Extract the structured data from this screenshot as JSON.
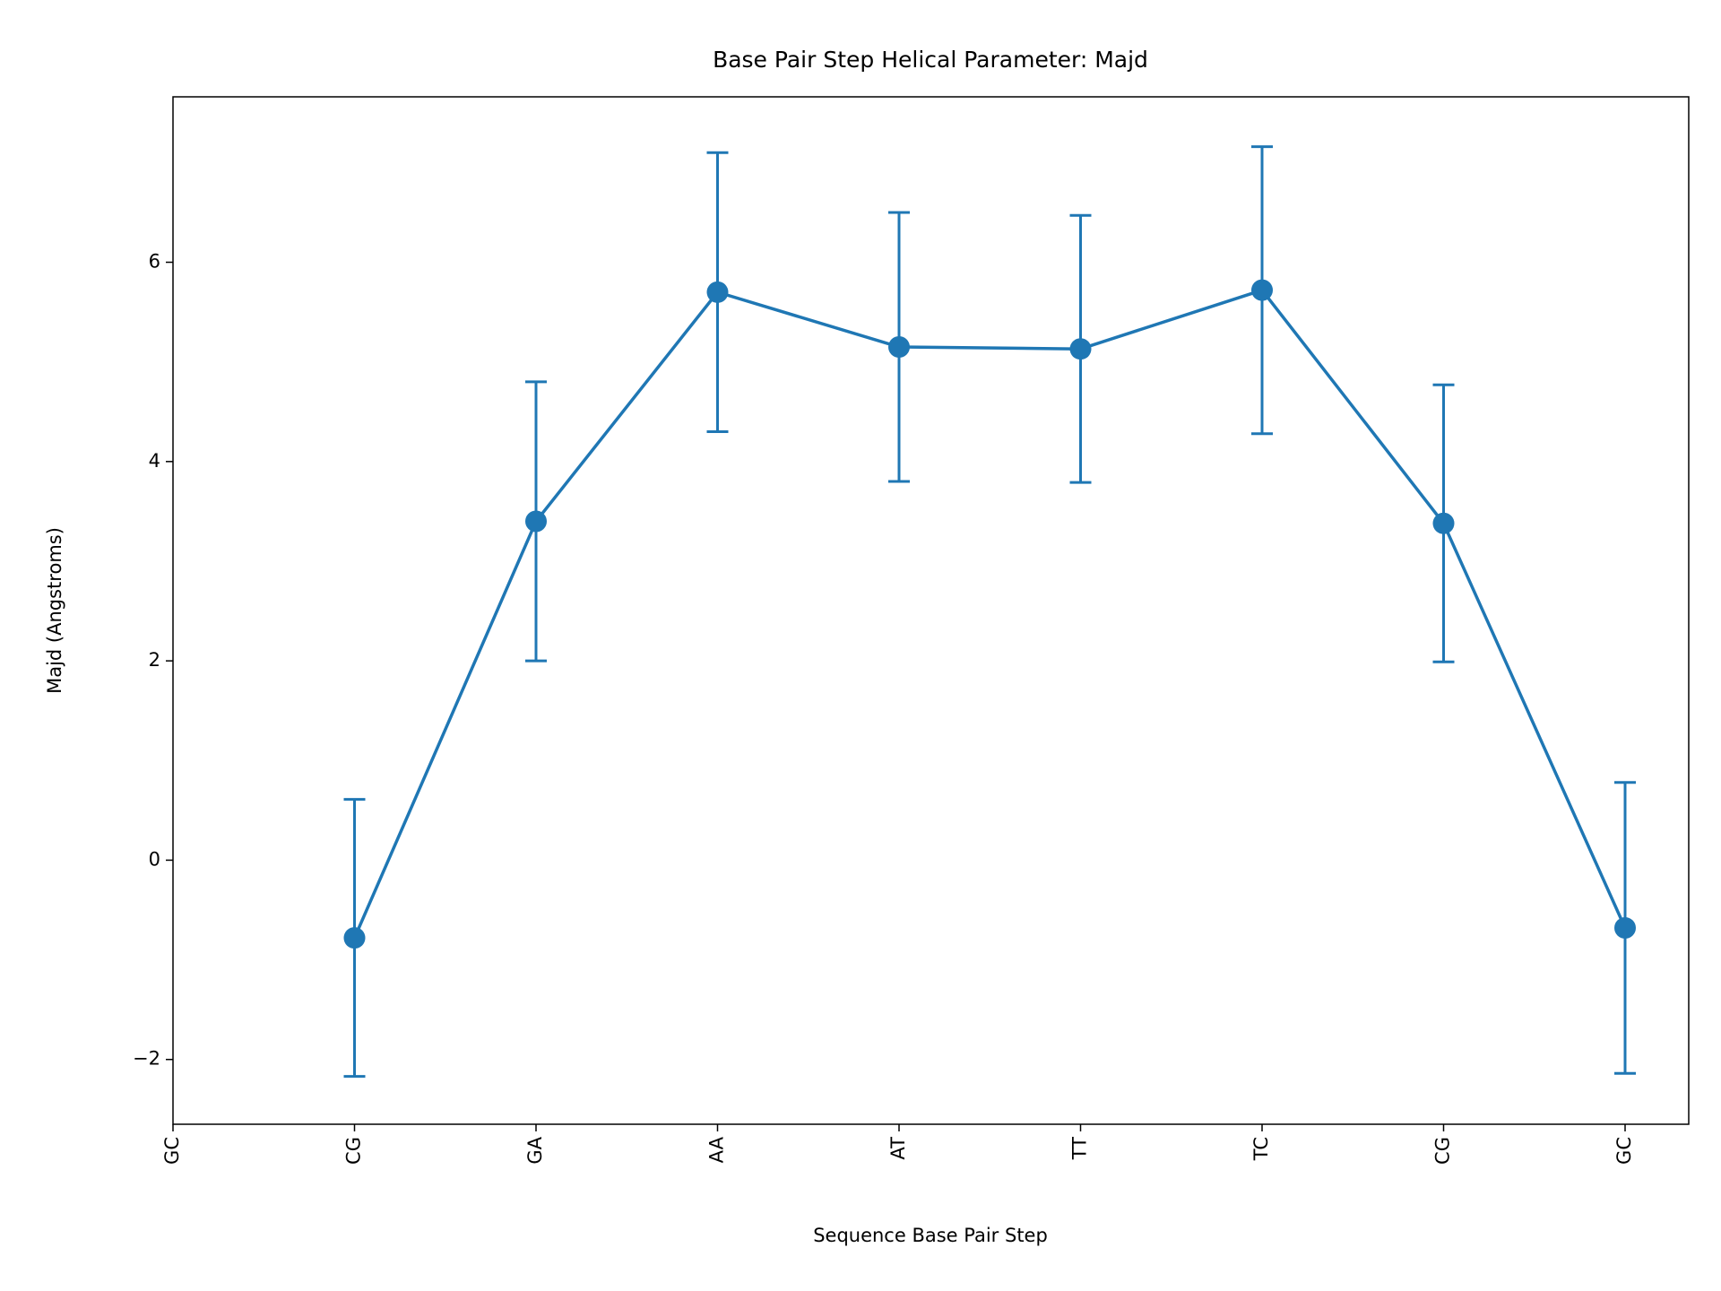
{
  "chart_data": {
    "type": "line",
    "title": "Base Pair Step Helical Parameter: Majd",
    "xlabel": "Sequence Base Pair Step",
    "ylabel": "Majd (Angstroms)",
    "categories": [
      "GC",
      "CG",
      "GA",
      "AA",
      "AT",
      "TT",
      "TC",
      "CG",
      "GC"
    ],
    "series": [
      {
        "color": "#1f77b4",
        "values": [
          null,
          -0.78,
          3.4,
          5.7,
          5.15,
          5.13,
          5.72,
          3.38,
          -0.68
        ],
        "errors": [
          null,
          1.39,
          1.4,
          1.4,
          1.35,
          1.34,
          1.44,
          1.39,
          1.46
        ]
      }
    ],
    "ylim": [
      -2.65,
      7.66
    ],
    "yticks": [
      {
        "value": -2,
        "label": "−2"
      },
      0,
      2,
      4,
      6
    ],
    "grid": false
  }
}
